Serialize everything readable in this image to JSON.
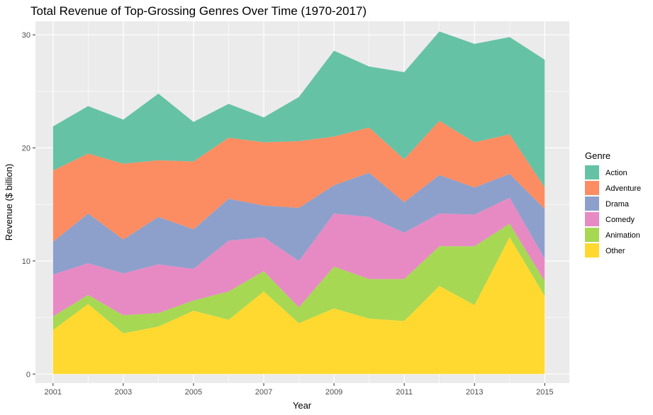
{
  "chart_data": {
    "type": "area",
    "stacked": true,
    "title": "Total Revenue of Top-Grossing Genres Over Time (1970-2017)",
    "xlabel": "Year",
    "ylabel": "Revenue ($ billion)",
    "xlim": [
      2000.5,
      2015.7
    ],
    "ylim": [
      -0.8,
      31.2
    ],
    "x": [
      2001,
      2002,
      2003,
      2004,
      2005,
      2006,
      2007,
      2008,
      2009,
      2010,
      2011,
      2012,
      2013,
      2014,
      2015
    ],
    "x_ticks": [
      2001,
      2003,
      2005,
      2007,
      2009,
      2011,
      2013,
      2015
    ],
    "y_ticks": [
      0,
      10,
      20,
      30
    ],
    "grid": true,
    "legend": {
      "title": "Genre",
      "position": "right"
    },
    "series": [
      {
        "name": "Other",
        "color": "#FFD92F",
        "values": [
          3.9,
          6.2,
          3.6,
          4.2,
          5.6,
          4.8,
          7.3,
          4.5,
          5.8,
          4.9,
          4.7,
          7.8,
          6.1,
          12.1,
          6.9
        ]
      },
      {
        "name": "Animation",
        "color": "#A6D854",
        "values": [
          1.2,
          0.8,
          1.6,
          1.2,
          0.9,
          2.5,
          1.8,
          1.4,
          3.7,
          3.5,
          3.7,
          3.5,
          5.2,
          1.2,
          1.3
        ]
      },
      {
        "name": "Comedy",
        "color": "#E78AC3",
        "values": [
          3.7,
          2.8,
          3.7,
          4.3,
          2.8,
          4.5,
          3.0,
          4.1,
          4.7,
          5.5,
          4.1,
          2.9,
          2.8,
          2.3,
          2.0
        ]
      },
      {
        "name": "Drama",
        "color": "#8DA0CB",
        "values": [
          2.9,
          4.4,
          3.0,
          4.2,
          3.5,
          3.7,
          2.8,
          4.7,
          2.5,
          3.9,
          2.7,
          3.4,
          2.4,
          2.1,
          4.4
        ]
      },
      {
        "name": "Adventure",
        "color": "#FC8D62",
        "values": [
          6.3,
          5.3,
          6.7,
          5.0,
          6.0,
          5.4,
          5.6,
          5.9,
          4.3,
          4.0,
          3.8,
          4.8,
          4.0,
          3.5,
          1.9
        ]
      },
      {
        "name": "Action",
        "color": "#66C2A5",
        "values": [
          3.9,
          4.2,
          3.9,
          5.9,
          3.5,
          3.0,
          2.2,
          3.9,
          7.6,
          5.4,
          7.7,
          7.9,
          8.7,
          8.6,
          11.3
        ]
      }
    ],
    "legend_order": [
      "Action",
      "Adventure",
      "Drama",
      "Comedy",
      "Animation",
      "Other"
    ]
  }
}
